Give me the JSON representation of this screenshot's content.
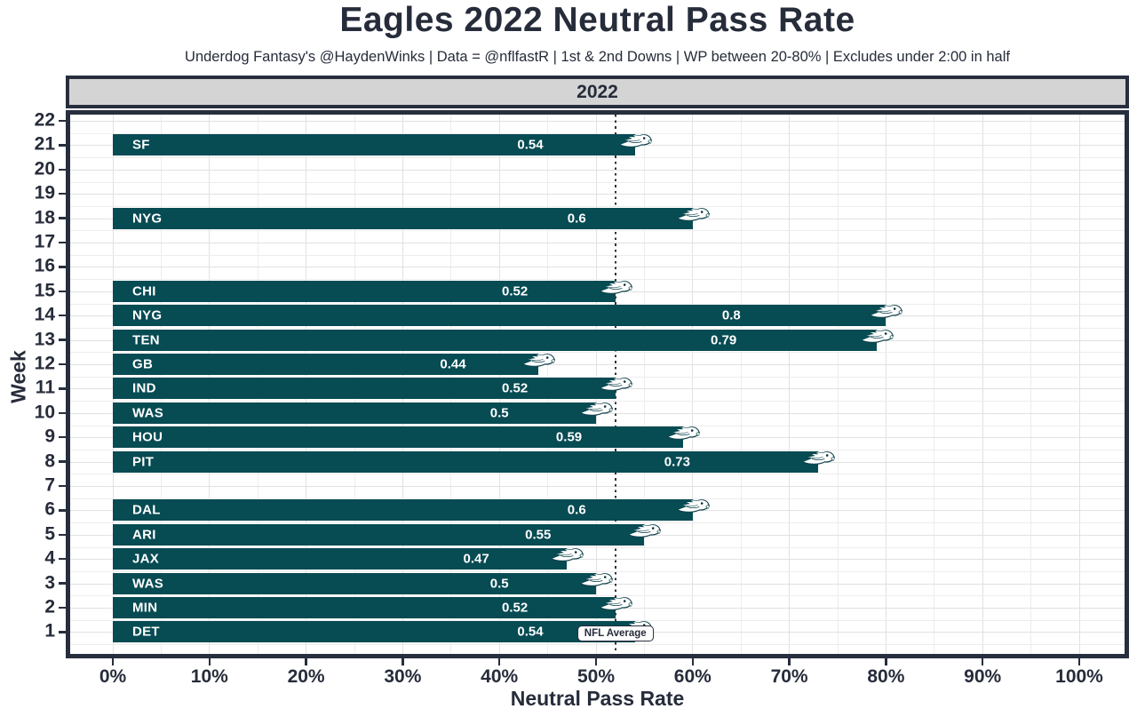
{
  "title": "Eagles 2022 Neutral Pass Rate",
  "subtitle": "Underdog Fantasy's @HaydenWinks | Data = @nflfastR | 1st & 2nd Downs | WP between 20-80% | Excludes under 2:00 in half",
  "facet_label": "2022",
  "colors": {
    "bar": "#074b53",
    "logo_dark": "#11444d",
    "text_dark": "#262c3a",
    "panel_border": "#272e3d",
    "strip_background": "#d4d4d4",
    "grid_major": "#e1e1e1",
    "grid_minor": "#ededed",
    "bar_text": "#ffffff"
  },
  "chart_data": {
    "type": "bar",
    "orientation": "horizontal",
    "title": "Eagles 2022 Neutral Pass Rate",
    "xlabel": "Neutral Pass Rate",
    "ylabel": "Week",
    "xlim": [
      0,
      1
    ],
    "grid": true,
    "legend": "none",
    "x_ticks": [
      "0%",
      "10%",
      "20%",
      "30%",
      "40%",
      "50%",
      "60%",
      "70%",
      "80%",
      "90%",
      "100%"
    ],
    "x_tick_values": [
      0,
      0.1,
      0.2,
      0.3,
      0.4,
      0.5,
      0.6,
      0.7,
      0.8,
      0.9,
      1.0
    ],
    "y_ticks": [
      "1",
      "2",
      "3",
      "4",
      "5",
      "6",
      "7",
      "8",
      "9",
      "10",
      "11",
      "12",
      "13",
      "14",
      "15",
      "16",
      "17",
      "18",
      "19",
      "20",
      "21",
      "22"
    ],
    "y_tick_values": [
      1,
      2,
      3,
      4,
      5,
      6,
      7,
      8,
      9,
      10,
      11,
      12,
      13,
      14,
      15,
      16,
      17,
      18,
      19,
      20,
      21,
      22
    ],
    "bars": [
      {
        "week": 21,
        "opponent": "SF",
        "value": 0.54,
        "label": "0.54"
      },
      {
        "week": 18,
        "opponent": "NYG",
        "value": 0.6,
        "label": "0.6"
      },
      {
        "week": 15,
        "opponent": "CHI",
        "value": 0.52,
        "label": "0.52"
      },
      {
        "week": 14,
        "opponent": "NYG",
        "value": 0.8,
        "label": "0.8"
      },
      {
        "week": 13,
        "opponent": "TEN",
        "value": 0.79,
        "label": "0.79"
      },
      {
        "week": 12,
        "opponent": "GB",
        "value": 0.44,
        "label": "0.44"
      },
      {
        "week": 11,
        "opponent": "IND",
        "value": 0.52,
        "label": "0.52"
      },
      {
        "week": 10,
        "opponent": "WAS",
        "value": 0.5,
        "label": "0.5"
      },
      {
        "week": 9,
        "opponent": "HOU",
        "value": 0.59,
        "label": "0.59"
      },
      {
        "week": 8,
        "opponent": "PIT",
        "value": 0.73,
        "label": "0.73"
      },
      {
        "week": 6,
        "opponent": "DAL",
        "value": 0.6,
        "label": "0.6"
      },
      {
        "week": 5,
        "opponent": "ARI",
        "value": 0.55,
        "label": "0.55"
      },
      {
        "week": 4,
        "opponent": "JAX",
        "value": 0.47,
        "label": "0.47"
      },
      {
        "week": 3,
        "opponent": "WAS",
        "value": 0.5,
        "label": "0.5"
      },
      {
        "week": 2,
        "opponent": "MIN",
        "value": 0.52,
        "label": "0.52"
      },
      {
        "week": 1,
        "opponent": "DET",
        "value": 0.54,
        "label": "0.54"
      }
    ],
    "reference_line": {
      "value": 0.52,
      "label": "NFL Average",
      "style": "dotted"
    },
    "bar_icon": "eagles-logo"
  }
}
